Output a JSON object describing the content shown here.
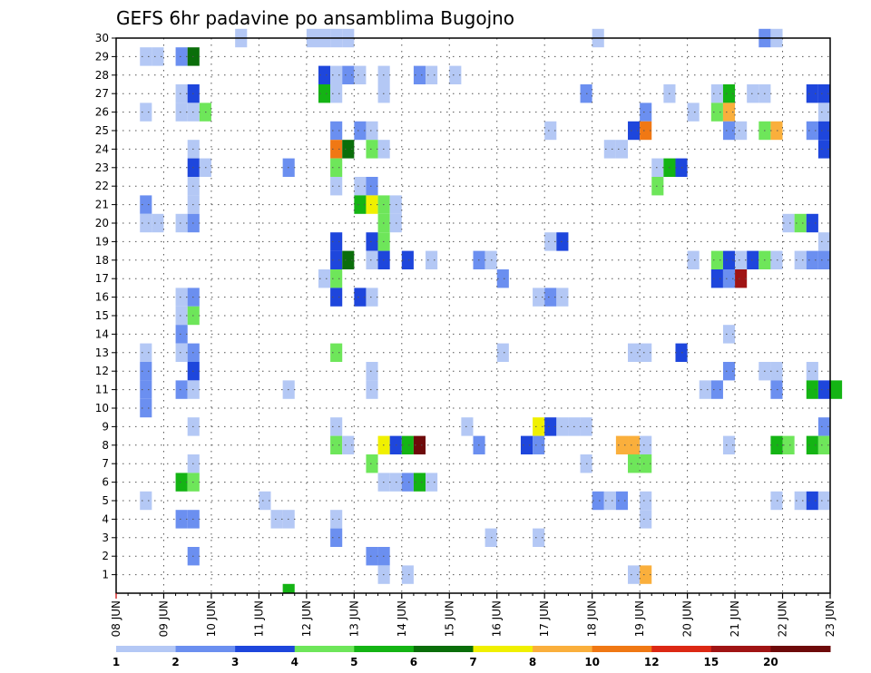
{
  "chart_data": {
    "type": "heatmap",
    "title": "GEFS 6hr padavine po ansamblima Bugojno",
    "x_labels": [
      "08 JUN",
      "09 JUN",
      "10 JUN",
      "11 JUN",
      "12 JUN",
      "13 JUN",
      "14 JUN",
      "15 JUN",
      "16 JUN",
      "17 JUN",
      "18 JUN",
      "19 JUN",
      "20 JUN",
      "21 JUN",
      "22 JUN",
      "23 JUN"
    ],
    "y_labels": [
      "1",
      "2",
      "3",
      "4",
      "5",
      "6",
      "7",
      "8",
      "9",
      "10",
      "11",
      "12",
      "13",
      "14",
      "15",
      "16",
      "17",
      "18",
      "19",
      "20",
      "21",
      "22",
      "23",
      "24",
      "25",
      "26",
      "27",
      "28",
      "29",
      "30"
    ],
    "x_range": [
      "08 JUN",
      "23 JUN"
    ],
    "y_range": [
      0,
      30
    ],
    "grid": true,
    "legend": {
      "position": "bottom",
      "boundaries": [
        "1",
        "2",
        "3",
        "4",
        "5",
        "6",
        "7",
        "8",
        "10",
        "12",
        "15",
        "20"
      ],
      "colors": [
        "#b4c8f5",
        "#6b8ff0",
        "#1e46dc",
        "#6ee65a",
        "#14b414",
        "#0a6e0a",
        "#f0f000",
        "#faaf3c",
        "#f07814",
        "#dc2814",
        "#a01414",
        "#6e0a0a"
      ]
    },
    "cells": [
      [
        10,
        30,
        1
      ],
      [
        16,
        30,
        1
      ],
      [
        17,
        30,
        1
      ],
      [
        18,
        30,
        1
      ],
      [
        19,
        30,
        1
      ],
      [
        40,
        30,
        1
      ],
      [
        54,
        30,
        2
      ],
      [
        55,
        30,
        1
      ],
      [
        2,
        29,
        1
      ],
      [
        3,
        29,
        1
      ],
      [
        5,
        29,
        2
      ],
      [
        6,
        29,
        6
      ],
      [
        17,
        28,
        3
      ],
      [
        18,
        28,
        1
      ],
      [
        19,
        28,
        2
      ],
      [
        20,
        28,
        1
      ],
      [
        22,
        28,
        1
      ],
      [
        25,
        28,
        2
      ],
      [
        26,
        28,
        1
      ],
      [
        28,
        28,
        1
      ],
      [
        5,
        27,
        1
      ],
      [
        6,
        27,
        3
      ],
      [
        17,
        27,
        5
      ],
      [
        18,
        27,
        1
      ],
      [
        22,
        27,
        1
      ],
      [
        39,
        27,
        2
      ],
      [
        46,
        27,
        1
      ],
      [
        50,
        27,
        1
      ],
      [
        51,
        27,
        5
      ],
      [
        53,
        27,
        1
      ],
      [
        54,
        27,
        1
      ],
      [
        58,
        27,
        3
      ],
      [
        59,
        27,
        3
      ],
      [
        2,
        26,
        1
      ],
      [
        5,
        26,
        1
      ],
      [
        6,
        26,
        1
      ],
      [
        7,
        26,
        4
      ],
      [
        44,
        26,
        2
      ],
      [
        48,
        26,
        1
      ],
      [
        50,
        26,
        4
      ],
      [
        51,
        26,
        8
      ],
      [
        59,
        26,
        1
      ],
      [
        18,
        25,
        2
      ],
      [
        20,
        25,
        2
      ],
      [
        21,
        25,
        1
      ],
      [
        36,
        25,
        1
      ],
      [
        43,
        25,
        3
      ],
      [
        44,
        25,
        9
      ],
      [
        51,
        25,
        2
      ],
      [
        52,
        25,
        1
      ],
      [
        54,
        25,
        4
      ],
      [
        55,
        25,
        8
      ],
      [
        58,
        25,
        2
      ],
      [
        59,
        25,
        3
      ],
      [
        6,
        24,
        1
      ],
      [
        18,
        24,
        9
      ],
      [
        19,
        24,
        6
      ],
      [
        21,
        24,
        4
      ],
      [
        22,
        24,
        1
      ],
      [
        41,
        24,
        1
      ],
      [
        42,
        24,
        1
      ],
      [
        59,
        24,
        3
      ],
      [
        6,
        23,
        3
      ],
      [
        7,
        23,
        1
      ],
      [
        14,
        23,
        2
      ],
      [
        18,
        23,
        4
      ],
      [
        45,
        23,
        1
      ],
      [
        46,
        23,
        5
      ],
      [
        47,
        23,
        3
      ],
      [
        6,
        22,
        1
      ],
      [
        18,
        22,
        1
      ],
      [
        20,
        22,
        1
      ],
      [
        21,
        22,
        2
      ],
      [
        45,
        22,
        4
      ],
      [
        2,
        21,
        2
      ],
      [
        6,
        21,
        1
      ],
      [
        20,
        21,
        5
      ],
      [
        21,
        21,
        7
      ],
      [
        22,
        21,
        4
      ],
      [
        23,
        21,
        1
      ],
      [
        2,
        20,
        1
      ],
      [
        3,
        20,
        1
      ],
      [
        5,
        20,
        1
      ],
      [
        6,
        20,
        2
      ],
      [
        22,
        20,
        4
      ],
      [
        23,
        20,
        1
      ],
      [
        56,
        20,
        1
      ],
      [
        57,
        20,
        4
      ],
      [
        58,
        20,
        3
      ],
      [
        18,
        19,
        3
      ],
      [
        21,
        19,
        3
      ],
      [
        22,
        19,
        4
      ],
      [
        36,
        19,
        1
      ],
      [
        37,
        19,
        3
      ],
      [
        59,
        19,
        1
      ],
      [
        18,
        18,
        3
      ],
      [
        19,
        18,
        6
      ],
      [
        21,
        18,
        1
      ],
      [
        22,
        18,
        3
      ],
      [
        24,
        18,
        3
      ],
      [
        26,
        18,
        1
      ],
      [
        30,
        18,
        2
      ],
      [
        31,
        18,
        1
      ],
      [
        48,
        18,
        1
      ],
      [
        50,
        18,
        4
      ],
      [
        51,
        18,
        3
      ],
      [
        52,
        18,
        1
      ],
      [
        53,
        18,
        3
      ],
      [
        54,
        18,
        4
      ],
      [
        55,
        18,
        1
      ],
      [
        57,
        18,
        1
      ],
      [
        58,
        18,
        2
      ],
      [
        59,
        18,
        2
      ],
      [
        17,
        17,
        1
      ],
      [
        18,
        17,
        4
      ],
      [
        32,
        17,
        2
      ],
      [
        50,
        17,
        3
      ],
      [
        51,
        17,
        2
      ],
      [
        52,
        17,
        11
      ],
      [
        5,
        16,
        1
      ],
      [
        6,
        16,
        2
      ],
      [
        5,
        15,
        1
      ],
      [
        6,
        15,
        4
      ],
      [
        18,
        16,
        3
      ],
      [
        20,
        16,
        3
      ],
      [
        21,
        16,
        1
      ],
      [
        35,
        16,
        1
      ],
      [
        36,
        16,
        2
      ],
      [
        37,
        16,
        1
      ],
      [
        5,
        14,
        2
      ],
      [
        51,
        14,
        1
      ],
      [
        2,
        13,
        1
      ],
      [
        5,
        13,
        1
      ],
      [
        6,
        13,
        2
      ],
      [
        18,
        13,
        4
      ],
      [
        32,
        13,
        1
      ],
      [
        43,
        13,
        1
      ],
      [
        44,
        13,
        1
      ],
      [
        47,
        13,
        3
      ],
      [
        2,
        12,
        2
      ],
      [
        6,
        12,
        3
      ],
      [
        21,
        12,
        1
      ],
      [
        51,
        12,
        2
      ],
      [
        54,
        12,
        1
      ],
      [
        55,
        12,
        1
      ],
      [
        58,
        12,
        1
      ],
      [
        2,
        11,
        2
      ],
      [
        5,
        11,
        2
      ],
      [
        6,
        11,
        1
      ],
      [
        14,
        11,
        1
      ],
      [
        21,
        11,
        1
      ],
      [
        49,
        11,
        1
      ],
      [
        50,
        11,
        2
      ],
      [
        55,
        11,
        2
      ],
      [
        58,
        11,
        5
      ],
      [
        59,
        11,
        3
      ],
      [
        60,
        11,
        5
      ],
      [
        2,
        10,
        2
      ],
      [
        6,
        9,
        1
      ],
      [
        18,
        9,
        1
      ],
      [
        29,
        9,
        1
      ],
      [
        35,
        9,
        7
      ],
      [
        36,
        9,
        3
      ],
      [
        37,
        9,
        1
      ],
      [
        38,
        9,
        1
      ],
      [
        39,
        9,
        1
      ],
      [
        59,
        9,
        2
      ],
      [
        18,
        8,
        4
      ],
      [
        19,
        8,
        1
      ],
      [
        22,
        8,
        7
      ],
      [
        23,
        8,
        3
      ],
      [
        24,
        8,
        5
      ],
      [
        25,
        8,
        12
      ],
      [
        30,
        8,
        2
      ],
      [
        34,
        8,
        3
      ],
      [
        35,
        8,
        2
      ],
      [
        42,
        8,
        8
      ],
      [
        43,
        8,
        8
      ],
      [
        44,
        8,
        1
      ],
      [
        51,
        8,
        1
      ],
      [
        55,
        8,
        5
      ],
      [
        56,
        8,
        4
      ],
      [
        58,
        8,
        5
      ],
      [
        59,
        8,
        4
      ],
      [
        6,
        7,
        1
      ],
      [
        21,
        7,
        4
      ],
      [
        39,
        7,
        1
      ],
      [
        43,
        7,
        4
      ],
      [
        44,
        7,
        4
      ],
      [
        5,
        6,
        5
      ],
      [
        6,
        6,
        4
      ],
      [
        22,
        6,
        1
      ],
      [
        23,
        6,
        1
      ],
      [
        24,
        6,
        2
      ],
      [
        25,
        6,
        5
      ],
      [
        26,
        6,
        1
      ],
      [
        2,
        5,
        1
      ],
      [
        12,
        5,
        1
      ],
      [
        40,
        5,
        2
      ],
      [
        41,
        5,
        1
      ],
      [
        42,
        5,
        2
      ],
      [
        44,
        5,
        1
      ],
      [
        55,
        5,
        1
      ],
      [
        57,
        5,
        1
      ],
      [
        58,
        5,
        3
      ],
      [
        59,
        5,
        1
      ],
      [
        5,
        4,
        2
      ],
      [
        6,
        4,
        2
      ],
      [
        13,
        4,
        1
      ],
      [
        14,
        4,
        1
      ],
      [
        18,
        4,
        1
      ],
      [
        44,
        4,
        1
      ],
      [
        18,
        3,
        2
      ],
      [
        31,
        3,
        1
      ],
      [
        35,
        3,
        1
      ],
      [
        6,
        2,
        2
      ],
      [
        21,
        2,
        2
      ],
      [
        22,
        2,
        2
      ],
      [
        22,
        1,
        1
      ],
      [
        24,
        1,
        1
      ],
      [
        43,
        1,
        1
      ],
      [
        44,
        1,
        8
      ],
      [
        14,
        0,
        5
      ]
    ]
  }
}
